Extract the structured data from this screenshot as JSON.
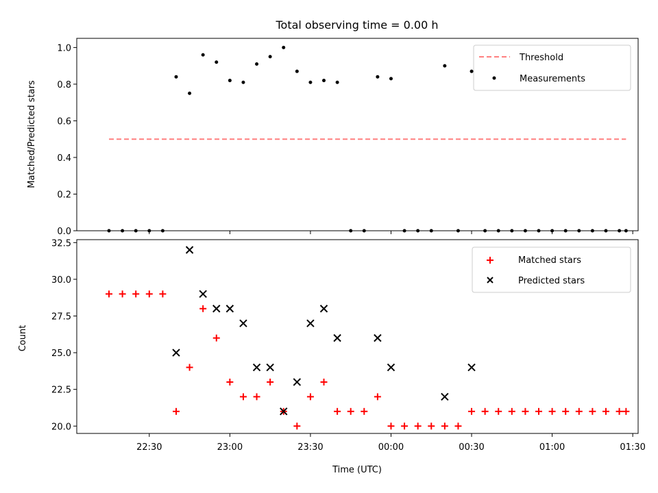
{
  "chart_data": [
    {
      "type": "scatter",
      "title": "Total observing time = 0.00 h",
      "ylabel": "Matched/Predicted stars",
      "ylim": [
        0,
        1.05
      ],
      "yticks": [
        "0.0",
        "0.2",
        "0.4",
        "0.6",
        "0.8",
        "1.0"
      ],
      "legend": {
        "position": "top-right",
        "entries": [
          "Threshold",
          "Measurements"
        ]
      },
      "threshold": {
        "name": "Threshold",
        "value": 0.5,
        "x_start": "22:15",
        "x_end": "01:27.5",
        "color": "#ff7f7f",
        "style": "dashed"
      },
      "series": [
        {
          "name": "Measurements",
          "color": "#000000",
          "points": [
            [
              "22:15",
              0
            ],
            [
              "22:20",
              0
            ],
            [
              "22:25",
              0
            ],
            [
              "22:30",
              0
            ],
            [
              "22:35",
              0
            ],
            [
              "22:40",
              0.84
            ],
            [
              "22:45",
              0.75
            ],
            [
              "22:50",
              0.96
            ],
            [
              "22:55",
              0.92
            ],
            [
              "23:00",
              0.82
            ],
            [
              "23:05",
              0.81
            ],
            [
              "23:10",
              0.91
            ],
            [
              "23:15",
              0.95
            ],
            [
              "23:20",
              1.0
            ],
            [
              "23:25",
              0.87
            ],
            [
              "23:30",
              0.81
            ],
            [
              "23:35",
              0.82
            ],
            [
              "23:40",
              0.81
            ],
            [
              "23:45",
              0
            ],
            [
              "23:50",
              0
            ],
            [
              "23:55",
              0.84
            ],
            [
              "00:00",
              0.83
            ],
            [
              "00:05",
              0
            ],
            [
              "00:10",
              0
            ],
            [
              "00:15",
              0
            ],
            [
              "00:20",
              0.9
            ],
            [
              "00:25",
              0
            ],
            [
              "00:30",
              0.87
            ],
            [
              "00:35",
              0
            ],
            [
              "00:40",
              0
            ],
            [
              "00:45",
              0
            ],
            [
              "00:50",
              0
            ],
            [
              "00:55",
              0
            ],
            [
              "01:00",
              0
            ],
            [
              "01:05",
              0
            ],
            [
              "01:10",
              0
            ],
            [
              "01:15",
              0
            ],
            [
              "01:20",
              0
            ],
            [
              "01:25",
              0
            ],
            [
              "01:27.5",
              0
            ]
          ]
        }
      ]
    },
    {
      "type": "scatter",
      "xlabel": "Time (UTC)",
      "ylabel": "Count",
      "ylim": [
        19.5,
        32.7
      ],
      "yticks": [
        "20.0",
        "22.5",
        "25.0",
        "27.5",
        "30.0",
        "32.5"
      ],
      "xticks": [
        "22:30",
        "23:00",
        "23:30",
        "00:00",
        "00:30",
        "01:00",
        "01:30"
      ],
      "legend": {
        "position": "top-right",
        "entries": [
          "Matched stars",
          "Predicted stars"
        ]
      },
      "series": [
        {
          "name": "Matched stars",
          "marker": "+",
          "color": "#ff0000",
          "points": [
            [
              "22:15",
              29
            ],
            [
              "22:20",
              29
            ],
            [
              "22:25",
              29
            ],
            [
              "22:30",
              29
            ],
            [
              "22:35",
              29
            ],
            [
              "22:40",
              21
            ],
            [
              "22:45",
              24
            ],
            [
              "22:50",
              28
            ],
            [
              "22:55",
              26
            ],
            [
              "23:00",
              23
            ],
            [
              "23:05",
              22
            ],
            [
              "23:10",
              22
            ],
            [
              "23:15",
              23
            ],
            [
              "23:20",
              21
            ],
            [
              "23:25",
              20
            ],
            [
              "23:30",
              22
            ],
            [
              "23:35",
              23
            ],
            [
              "23:40",
              21
            ],
            [
              "23:45",
              21
            ],
            [
              "23:50",
              21
            ],
            [
              "23:55",
              22
            ],
            [
              "00:00",
              20
            ],
            [
              "00:05",
              20
            ],
            [
              "00:10",
              20
            ],
            [
              "00:15",
              20
            ],
            [
              "00:20",
              20
            ],
            [
              "00:25",
              20
            ],
            [
              "00:30",
              21
            ],
            [
              "00:35",
              21
            ],
            [
              "00:40",
              21
            ],
            [
              "00:45",
              21
            ],
            [
              "00:50",
              21
            ],
            [
              "00:55",
              21
            ],
            [
              "01:00",
              21
            ],
            [
              "01:05",
              21
            ],
            [
              "01:10",
              21
            ],
            [
              "01:15",
              21
            ],
            [
              "01:20",
              21
            ],
            [
              "01:25",
              21
            ],
            [
              "01:27.5",
              21
            ]
          ]
        },
        {
          "name": "Predicted stars",
          "marker": "x",
          "color": "#000000",
          "points": [
            [
              "22:40",
              25
            ],
            [
              "22:45",
              32
            ],
            [
              "22:50",
              29
            ],
            [
              "22:55",
              28
            ],
            [
              "23:00",
              28
            ],
            [
              "23:05",
              27
            ],
            [
              "23:10",
              24
            ],
            [
              "23:15",
              24
            ],
            [
              "23:20",
              21
            ],
            [
              "23:25",
              23
            ],
            [
              "23:30",
              27
            ],
            [
              "23:35",
              28
            ],
            [
              "23:40",
              26
            ],
            [
              "23:55",
              26
            ],
            [
              "00:00",
              24
            ],
            [
              "00:20",
              22
            ],
            [
              "00:30",
              24
            ]
          ]
        }
      ]
    }
  ]
}
